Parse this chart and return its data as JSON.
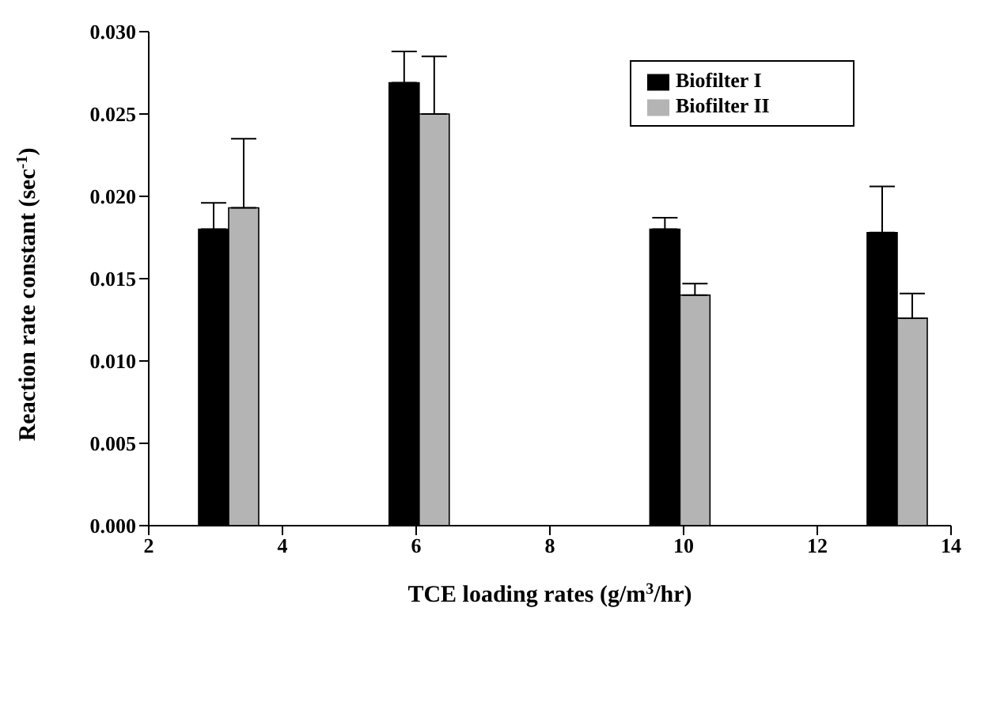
{
  "chart_data": {
    "type": "bar",
    "xlabel": "TCE loading rates (g/m$^{3}$/hr)",
    "ylabel": "Reaction rate constant (sec$^{-1}$)",
    "x": [
      3.2,
      6.05,
      9.95,
      13.2
    ],
    "series": [
      {
        "name": "Biofilter I",
        "color": "#000000",
        "values": [
          0.018,
          0.0269,
          0.018,
          0.0178
        ],
        "errors": [
          [
            0.018,
            0.0196
          ],
          [
            0.0269,
            0.0288
          ],
          [
            0.018,
            0.0187
          ],
          [
            0.0178,
            0.0206
          ]
        ]
      },
      {
        "name": "Biofilter II",
        "color": "#b4b4b4",
        "values": [
          0.0193,
          0.025,
          0.014,
          0.0126
        ],
        "errors": [
          [
            0.0193,
            0.0235
          ],
          [
            0.025,
            0.0285
          ],
          [
            0.014,
            0.0147
          ],
          [
            0.0126,
            0.0141
          ]
        ]
      }
    ],
    "xlim": [
      2,
      14
    ],
    "xticks": [
      2,
      4,
      6,
      8,
      10,
      12,
      14
    ],
    "ylim": [
      0,
      0.03
    ],
    "yticks": [
      {
        "value": 0,
        "label": "0.000"
      },
      0.005,
      {
        "value": 0.01,
        "label": "0.010"
      },
      0.015,
      {
        "value": 0.02,
        "label": "0.020"
      },
      0.025,
      {
        "value": 0.03,
        "label": "0.030"
      }
    ],
    "legend": "top right",
    "grid": false
  }
}
